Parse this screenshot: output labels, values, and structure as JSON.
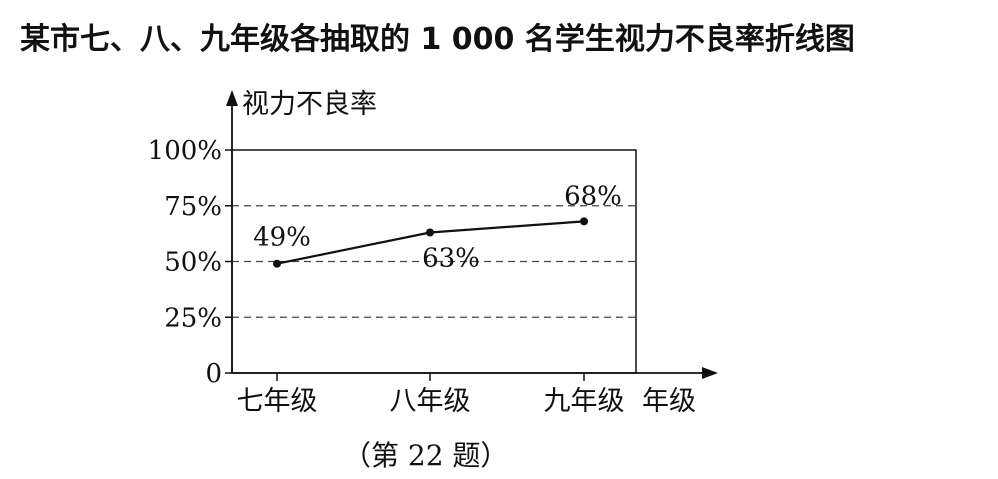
{
  "chart_data": {
    "type": "line",
    "title": "某市七、八、九年级各抽取的 1 000 名学生视力不良率折线图",
    "ylabel": "视力不良率",
    "xlabel": "年级",
    "categories": [
      "七年级",
      "八年级",
      "九年级"
    ],
    "values": [
      49,
      63,
      68
    ],
    "data_labels": [
      "49%",
      "63%",
      "68%"
    ],
    "yticks": [
      0,
      25,
      50,
      75,
      100
    ],
    "ytick_labels": [
      "0",
      "25%",
      "50%",
      "75%",
      "100%"
    ],
    "ylim": [
      0,
      100
    ],
    "grid": "dashed horizontal at 25%, 50%, 75%",
    "line_color": "#111111"
  },
  "caption": "（第 22 题）"
}
